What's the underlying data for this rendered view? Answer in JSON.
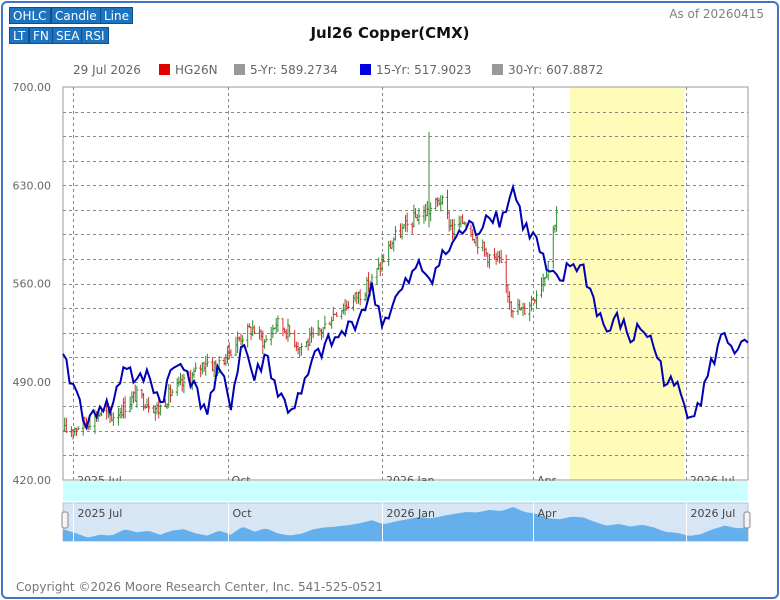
{
  "toolbar": {
    "row1": [
      "OHLC",
      "Candle",
      "Line"
    ],
    "row2": [
      "LT",
      "FN",
      "SEA",
      "RSI"
    ]
  },
  "asof": "As of 20260415",
  "title": "Jul26 Copper(CMX)",
  "legend": {
    "date": "29 Jul 2026",
    "items": [
      {
        "label": "HG26N",
        "color": "#e00000"
      },
      {
        "label": "5-Yr: 589.2734",
        "color": "#999999"
      },
      {
        "label": "15-Yr: 517.9023",
        "color": "#0000e0"
      },
      {
        "label": "30-Yr: 607.8872",
        "color": "#999999"
      }
    ]
  },
  "footer": "Copyright ©2026 Moore Research Center, Inc. 541-525-0521",
  "colors": {
    "up": "#2e8b2e",
    "down": "#d03030",
    "seasonal": "#0000b4",
    "highlight": "#fffbb8",
    "navigator_fill": "#5aa8ec",
    "navigator_band": "#c9ffff"
  },
  "chart_data": {
    "type": "line",
    "title": "Jul26 Copper(CMX)",
    "ylim": [
      420,
      700
    ],
    "yticks": [
      420,
      490,
      560,
      630,
      700
    ],
    "xlim": [
      "2025-06-25",
      "2026-08-07"
    ],
    "xticks": [
      {
        "label": "2025 Jul",
        "date": "2025-07-01"
      },
      {
        "label": "Oct",
        "date": "2025-10-01"
      },
      {
        "label": "2026 Jan",
        "date": "2026-01-01"
      },
      {
        "label": "Apr",
        "date": "2026-04-01"
      },
      {
        "label": "2026 Jul",
        "date": "2026-07-01"
      }
    ],
    "highlight": {
      "start": "2026-04-23",
      "end": "2026-06-30"
    },
    "series": [
      {
        "name": "HG26N",
        "kind": "ohlc_close",
        "x": [
          "2025-06-26",
          "2025-07-03",
          "2025-07-10",
          "2025-07-17",
          "2025-07-24",
          "2025-07-31",
          "2025-08-07",
          "2025-08-14",
          "2025-08-21",
          "2025-08-28",
          "2025-09-04",
          "2025-09-11",
          "2025-09-18",
          "2025-09-25",
          "2025-10-02",
          "2025-10-09",
          "2025-10-16",
          "2025-10-23",
          "2025-10-30",
          "2025-11-06",
          "2025-11-13",
          "2025-11-20",
          "2025-11-27",
          "2025-12-04",
          "2025-12-11",
          "2025-12-18",
          "2025-12-25",
          "2026-01-01",
          "2026-01-08",
          "2026-01-15",
          "2026-01-22",
          "2026-01-29",
          "2026-02-05",
          "2026-02-12",
          "2026-02-19",
          "2026-02-26",
          "2026-03-05",
          "2026-03-12",
          "2026-03-19",
          "2026-03-26",
          "2026-04-02",
          "2026-04-09",
          "2026-04-15"
        ],
        "values": [
          455,
          458,
          462,
          468,
          465,
          472,
          480,
          476,
          470,
          482,
          488,
          495,
          505,
          500,
          512,
          522,
          528,
          518,
          532,
          526,
          515,
          520,
          528,
          540,
          545,
          552,
          560,
          575,
          592,
          600,
          608,
          612,
          620,
          598,
          605,
          592,
          580,
          575,
          545,
          540,
          552,
          570,
          612
        ]
      },
      {
        "name": "15-Yr: 517.9023",
        "kind": "seasonal",
        "x": [
          "2025-06-25",
          "2025-07-03",
          "2025-07-10",
          "2025-07-17",
          "2025-07-24",
          "2025-08-01",
          "2025-08-08",
          "2025-08-15",
          "2025-08-22",
          "2025-08-29",
          "2025-09-05",
          "2025-09-12",
          "2025-09-19",
          "2025-09-26",
          "2025-10-03",
          "2025-10-10",
          "2025-10-17",
          "2025-10-24",
          "2025-10-31",
          "2025-11-07",
          "2025-11-14",
          "2025-11-21",
          "2025-11-28",
          "2025-12-05",
          "2025-12-12",
          "2025-12-19",
          "2025-12-26",
          "2026-01-02",
          "2026-01-09",
          "2026-01-16",
          "2026-01-23",
          "2026-01-30",
          "2026-02-06",
          "2026-02-13",
          "2026-02-20",
          "2026-02-27",
          "2026-03-06",
          "2026-03-13",
          "2026-03-20",
          "2026-03-27",
          "2026-04-03",
          "2026-04-10",
          "2026-04-17",
          "2026-04-24",
          "2026-05-01",
          "2026-05-08",
          "2026-05-15",
          "2026-05-22",
          "2026-05-29",
          "2026-06-05",
          "2026-06-12",
          "2026-06-19",
          "2026-06-26",
          "2026-07-03",
          "2026-07-10",
          "2026-07-17",
          "2026-07-24",
          "2026-08-01",
          "2026-08-07"
        ],
        "values": [
          505,
          482,
          458,
          475,
          470,
          505,
          488,
          496,
          475,
          498,
          505,
          482,
          470,
          498,
          475,
          520,
          492,
          510,
          482,
          470,
          480,
          505,
          515,
          520,
          528,
          538,
          555,
          532,
          548,
          560,
          572,
          565,
          578,
          590,
          600,
          598,
          612,
          605,
          628,
          600,
          590,
          565,
          560,
          575,
          570,
          545,
          525,
          535,
          520,
          530,
          515,
          490,
          485,
          468,
          478,
          505,
          525,
          510,
          518
        ]
      }
    ],
    "navigator": {
      "xlabels": [
        "2025 Jul",
        "Oct",
        "2026 Jan",
        "Apr",
        "2026 Jul"
      ]
    }
  }
}
